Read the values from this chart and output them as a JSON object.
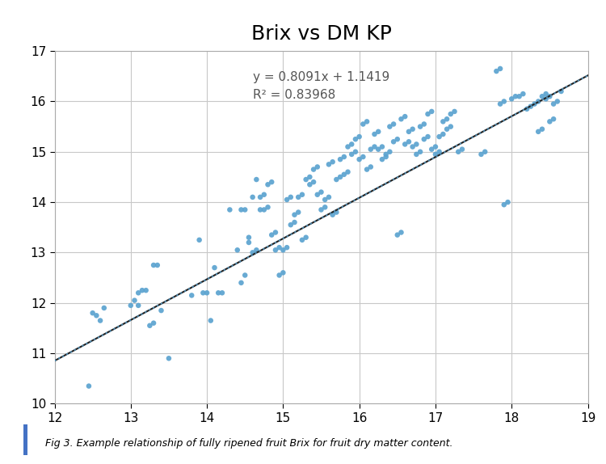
{
  "title": "Brix vs DM KP",
  "equation_text": "y = 0.8091x + 1.1419",
  "r2_text": "R² = 0.83968",
  "slope": 0.8091,
  "intercept": 1.1419,
  "xlim": [
    12,
    19
  ],
  "ylim": [
    10,
    17
  ],
  "xticks": [
    12,
    13,
    14,
    15,
    16,
    17,
    18,
    19
  ],
  "yticks": [
    10,
    11,
    12,
    13,
    14,
    15,
    16,
    17
  ],
  "scatter_color": "#5BA3D0",
  "line_color": "#222222",
  "dotted_line_color": "#5BA3D0",
  "caption": "Fig 3. Example relationship of fully ripened fruit Brix for fruit dry matter content.",
  "accent_color": "#4472c4",
  "points": [
    [
      12.45,
      10.35
    ],
    [
      12.5,
      11.8
    ],
    [
      12.55,
      11.75
    ],
    [
      12.6,
      11.65
    ],
    [
      12.65,
      11.9
    ],
    [
      13.0,
      11.95
    ],
    [
      13.05,
      12.05
    ],
    [
      13.1,
      11.95
    ],
    [
      13.1,
      12.2
    ],
    [
      13.15,
      12.25
    ],
    [
      13.2,
      12.25
    ],
    [
      13.25,
      11.55
    ],
    [
      13.3,
      11.6
    ],
    [
      13.3,
      12.75
    ],
    [
      13.35,
      12.75
    ],
    [
      13.4,
      11.85
    ],
    [
      13.5,
      10.9
    ],
    [
      13.8,
      12.15
    ],
    [
      13.9,
      13.25
    ],
    [
      13.95,
      12.2
    ],
    [
      14.0,
      12.2
    ],
    [
      14.05,
      11.65
    ],
    [
      14.1,
      12.7
    ],
    [
      14.15,
      12.2
    ],
    [
      14.2,
      12.2
    ],
    [
      14.3,
      13.85
    ],
    [
      14.4,
      13.05
    ],
    [
      14.45,
      12.4
    ],
    [
      14.5,
      13.85
    ],
    [
      14.55,
      13.2
    ],
    [
      14.6,
      13.0
    ],
    [
      14.65,
      14.45
    ],
    [
      14.7,
      14.1
    ],
    [
      14.75,
      13.85
    ],
    [
      14.8,
      14.35
    ],
    [
      14.85,
      13.35
    ],
    [
      14.9,
      13.05
    ],
    [
      14.95,
      12.55
    ],
    [
      15.0,
      13.05
    ],
    [
      15.05,
      14.05
    ],
    [
      15.1,
      13.55
    ],
    [
      15.15,
      13.75
    ],
    [
      15.2,
      14.1
    ],
    [
      15.25,
      13.25
    ],
    [
      15.3,
      14.45
    ],
    [
      15.35,
      14.35
    ],
    [
      15.4,
      14.65
    ],
    [
      15.45,
      14.15
    ],
    [
      15.5,
      13.85
    ],
    [
      15.55,
      14.05
    ],
    [
      15.6,
      14.75
    ],
    [
      15.65,
      13.75
    ],
    [
      15.7,
      14.45
    ],
    [
      15.75,
      14.85
    ],
    [
      15.8,
      14.55
    ],
    [
      15.85,
      15.1
    ],
    [
      15.9,
      14.95
    ],
    [
      15.95,
      15.25
    ],
    [
      16.0,
      14.85
    ],
    [
      16.05,
      15.55
    ],
    [
      16.1,
      14.65
    ],
    [
      16.15,
      15.05
    ],
    [
      16.2,
      15.35
    ],
    [
      16.25,
      15.05
    ],
    [
      16.3,
      14.85
    ],
    [
      16.35,
      14.95
    ],
    [
      16.4,
      15.5
    ],
    [
      16.45,
      15.2
    ],
    [
      16.5,
      13.35
    ],
    [
      16.55,
      15.65
    ],
    [
      16.6,
      15.15
    ],
    [
      16.65,
      15.4
    ],
    [
      16.7,
      15.1
    ],
    [
      16.75,
      14.95
    ],
    [
      16.8,
      15.5
    ],
    [
      16.85,
      15.25
    ],
    [
      16.9,
      15.75
    ],
    [
      16.95,
      15.05
    ],
    [
      17.0,
      14.95
    ],
    [
      17.05,
      15.3
    ],
    [
      17.1,
      15.6
    ],
    [
      17.15,
      15.45
    ],
    [
      17.2,
      15.75
    ],
    [
      17.3,
      15.0
    ],
    [
      17.6,
      14.95
    ],
    [
      17.8,
      16.6
    ],
    [
      17.85,
      15.95
    ],
    [
      17.9,
      13.95
    ],
    [
      18.0,
      16.05
    ],
    [
      18.1,
      16.1
    ],
    [
      18.2,
      15.85
    ],
    [
      18.3,
      15.95
    ],
    [
      18.35,
      15.4
    ],
    [
      18.4,
      16.1
    ],
    [
      18.45,
      16.05
    ],
    [
      18.5,
      15.6
    ],
    [
      18.55,
      15.95
    ],
    [
      18.65,
      16.2
    ],
    [
      14.45,
      13.85
    ],
    [
      14.5,
      12.55
    ],
    [
      14.55,
      13.3
    ],
    [
      14.6,
      14.1
    ],
    [
      14.65,
      13.05
    ],
    [
      14.7,
      13.85
    ],
    [
      14.75,
      14.15
    ],
    [
      14.8,
      13.9
    ],
    [
      14.85,
      14.4
    ],
    [
      14.9,
      13.4
    ],
    [
      14.95,
      13.1
    ],
    [
      15.0,
      12.6
    ],
    [
      15.05,
      13.1
    ],
    [
      15.1,
      14.1
    ],
    [
      15.15,
      13.6
    ],
    [
      15.2,
      13.8
    ],
    [
      15.25,
      14.15
    ],
    [
      15.3,
      13.3
    ],
    [
      15.35,
      14.5
    ],
    [
      15.4,
      14.4
    ],
    [
      15.45,
      14.7
    ],
    [
      15.5,
      14.2
    ],
    [
      15.55,
      13.9
    ],
    [
      15.6,
      14.1
    ],
    [
      15.65,
      14.8
    ],
    [
      15.7,
      13.8
    ],
    [
      15.75,
      14.5
    ],
    [
      15.8,
      14.9
    ],
    [
      15.85,
      14.6
    ],
    [
      15.9,
      15.15
    ],
    [
      15.95,
      15.0
    ],
    [
      16.0,
      15.3
    ],
    [
      16.05,
      14.9
    ],
    [
      16.1,
      15.6
    ],
    [
      16.15,
      14.7
    ],
    [
      16.2,
      15.1
    ],
    [
      16.25,
      15.4
    ],
    [
      16.3,
      15.1
    ],
    [
      16.35,
      14.9
    ],
    [
      16.4,
      15.0
    ],
    [
      16.45,
      15.55
    ],
    [
      16.5,
      15.25
    ],
    [
      16.55,
      13.4
    ],
    [
      16.6,
      15.7
    ],
    [
      16.65,
      15.2
    ],
    [
      16.7,
      15.45
    ],
    [
      16.75,
      15.15
    ],
    [
      16.8,
      15.0
    ],
    [
      16.85,
      15.55
    ],
    [
      16.9,
      15.3
    ],
    [
      16.95,
      15.8
    ],
    [
      17.0,
      15.1
    ],
    [
      17.05,
      15.0
    ],
    [
      17.1,
      15.35
    ],
    [
      17.15,
      15.65
    ],
    [
      17.2,
      15.5
    ],
    [
      17.25,
      15.8
    ],
    [
      17.35,
      15.05
    ],
    [
      17.65,
      15.0
    ],
    [
      17.85,
      16.65
    ],
    [
      17.9,
      16.0
    ],
    [
      17.95,
      14.0
    ],
    [
      18.05,
      16.1
    ],
    [
      18.15,
      16.15
    ],
    [
      18.25,
      15.9
    ],
    [
      18.35,
      16.0
    ],
    [
      18.4,
      15.45
    ],
    [
      18.45,
      16.15
    ],
    [
      18.5,
      16.1
    ],
    [
      18.55,
      15.65
    ],
    [
      18.6,
      16.0
    ]
  ]
}
